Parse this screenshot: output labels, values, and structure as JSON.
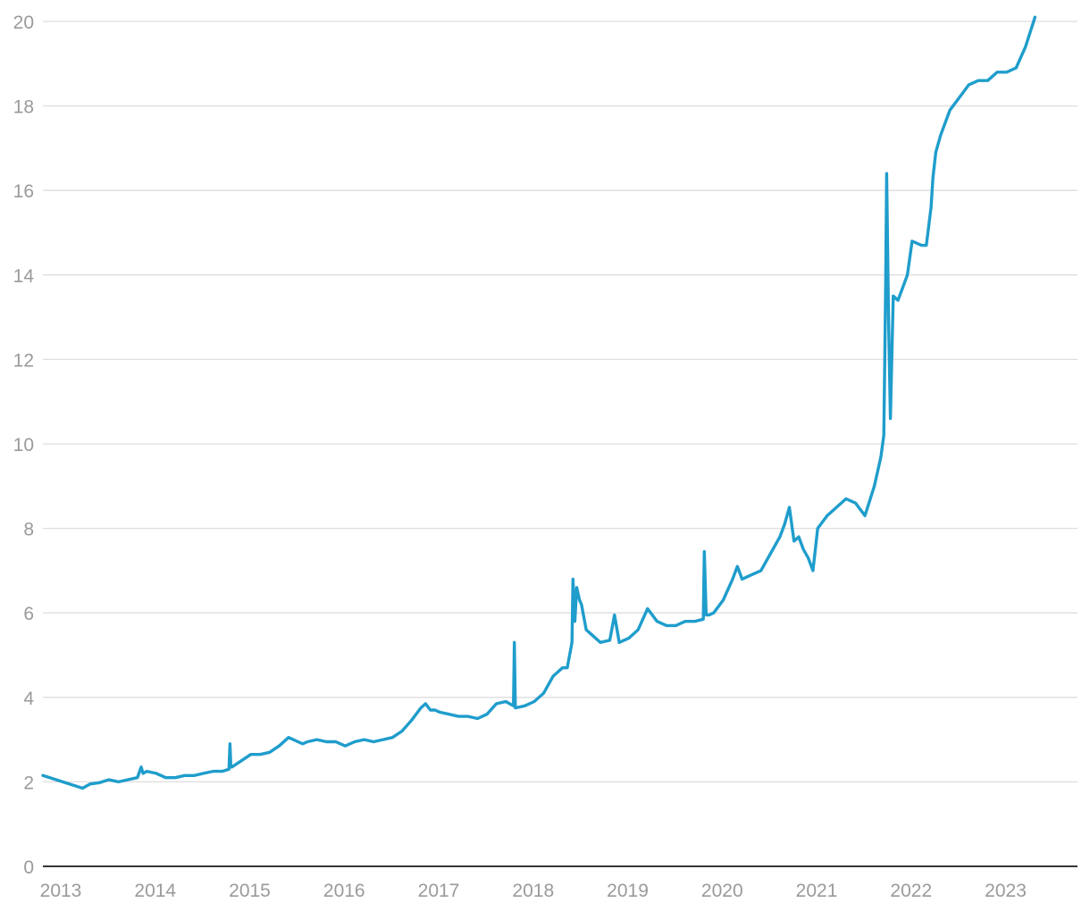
{
  "chart_data": {
    "type": "line",
    "title": "",
    "xlabel": "",
    "ylabel": "",
    "xlim": [
      2013.0,
      2023.95
    ],
    "ylim": [
      0,
      20
    ],
    "grid": true,
    "legend": "none",
    "color": "#1f9dcc",
    "x_ticks": [
      "2013",
      "2014",
      "2015",
      "2016",
      "2017",
      "2018",
      "2019",
      "2020",
      "2021",
      "2022",
      "2023"
    ],
    "y_ticks": [
      "0",
      "2",
      "4",
      "6",
      "8",
      "10",
      "12",
      "14",
      "16",
      "18",
      "20"
    ],
    "series": [
      {
        "x": [
          2013.0,
          2013.42,
          2013.5,
          2013.6,
          2013.7,
          2013.8,
          2013.9,
          2014.0,
          2014.04,
          2014.06,
          2014.1,
          2014.2,
          2014.3,
          2014.4,
          2014.5,
          2014.6,
          2014.7,
          2014.8,
          2014.9,
          2014.97,
          2014.98,
          2014.99,
          2015.0,
          2015.1,
          2015.2,
          2015.3,
          2015.4,
          2015.5,
          2015.6,
          2015.7,
          2015.75,
          2015.8,
          2015.9,
          2016.0,
          2016.1,
          2016.2,
          2016.3,
          2016.4,
          2016.5,
          2016.6,
          2016.7,
          2016.8,
          2016.9,
          2017.0,
          2017.05,
          2017.1,
          2017.15,
          2017.2,
          2017.3,
          2017.4,
          2017.5,
          2017.6,
          2017.7,
          2017.8,
          2017.9,
          2017.98,
          2017.99,
          2018.0,
          2018.1,
          2018.2,
          2018.3,
          2018.4,
          2018.5,
          2018.55,
          2018.6,
          2018.61,
          2018.63,
          2018.65,
          2018.68,
          2018.7,
          2018.75,
          2018.8,
          2018.9,
          2019.0,
          2019.05,
          2019.1,
          2019.2,
          2019.3,
          2019.4,
          2019.5,
          2019.6,
          2019.7,
          2019.75,
          2019.8,
          2019.9,
          2019.99,
          2020.0,
          2020.02,
          2020.05,
          2020.1,
          2020.2,
          2020.3,
          2020.35,
          2020.4,
          2020.5,
          2020.6,
          2020.7,
          2020.8,
          2020.85,
          2020.9,
          2020.95,
          2021.0,
          2021.05,
          2021.1,
          2021.15,
          2021.2,
          2021.3,
          2021.4,
          2021.5,
          2021.6,
          2021.7,
          2021.8,
          2021.85,
          2021.87,
          2021.9,
          2021.91,
          2021.92,
          2021.93,
          2021.95,
          2021.97,
          2022.0,
          2022.05,
          2022.1,
          2022.15,
          2022.2,
          2022.3,
          2022.35,
          2022.4,
          2022.42,
          2022.45,
          2022.5,
          2022.6,
          2022.7,
          2022.8,
          2022.9,
          2023.0,
          2023.1,
          2023.2,
          2023.3,
          2023.4,
          2023.5
        ],
        "y": [
          2.15,
          1.85,
          1.95,
          1.98,
          2.05,
          2.0,
          2.05,
          2.1,
          2.35,
          2.2,
          2.25,
          2.2,
          2.1,
          2.1,
          2.15,
          2.15,
          2.2,
          2.25,
          2.25,
          2.3,
          2.9,
          2.35,
          2.35,
          2.5,
          2.65,
          2.65,
          2.7,
          2.85,
          3.05,
          2.95,
          2.9,
          2.95,
          3.0,
          2.95,
          2.95,
          2.85,
          2.95,
          3.0,
          2.95,
          3.0,
          3.05,
          3.2,
          3.45,
          3.75,
          3.85,
          3.7,
          3.7,
          3.65,
          3.6,
          3.55,
          3.55,
          3.5,
          3.6,
          3.85,
          3.9,
          3.8,
          5.3,
          3.75,
          3.8,
          3.9,
          4.1,
          4.5,
          4.7,
          4.7,
          5.3,
          6.8,
          5.8,
          6.6,
          6.3,
          6.2,
          5.6,
          5.5,
          5.3,
          5.35,
          5.95,
          5.3,
          5.4,
          5.6,
          6.1,
          5.8,
          5.7,
          5.7,
          5.75,
          5.8,
          5.8,
          5.85,
          7.45,
          5.95,
          5.95,
          6.0,
          6.3,
          6.8,
          7.1,
          6.8,
          6.9,
          7.0,
          7.4,
          7.8,
          8.1,
          8.5,
          7.7,
          7.8,
          7.5,
          7.3,
          7.0,
          8.0,
          8.3,
          8.5,
          8.7,
          8.6,
          8.3,
          9.0,
          9.5,
          9.7,
          10.2,
          12.0,
          13.8,
          16.4,
          13.0,
          10.6,
          13.5,
          13.4,
          13.7,
          14.0,
          14.8,
          14.7,
          14.7,
          15.6,
          16.3,
          16.9,
          17.3,
          17.9,
          18.2,
          18.5,
          18.6,
          18.6,
          18.8,
          18.8,
          18.9,
          19.4,
          20.1
        ]
      }
    ]
  }
}
